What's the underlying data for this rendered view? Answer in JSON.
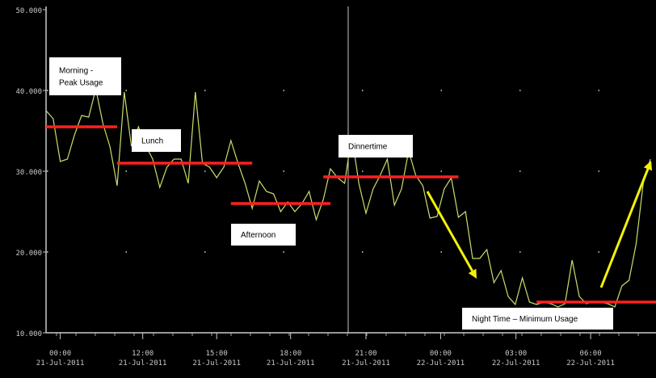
{
  "chart_data": {
    "type": "line",
    "title": "",
    "xlabel": "",
    "ylabel": "",
    "ylim": [
      10,
      50
    ],
    "y_ticks": [
      "10.000",
      "20.000",
      "30.000",
      "40.000",
      "50.000"
    ],
    "x_ticks": [
      {
        "time": "00:00",
        "date": "21-Jul-2011"
      },
      {
        "time": "12:00",
        "date": "21-Jul-2011"
      },
      {
        "time": "15:00",
        "date": "21-Jul-2011"
      },
      {
        "time": "18:00",
        "date": "21-Jul-2011"
      },
      {
        "time": "21:00",
        "date": "21-Jul-2011"
      },
      {
        "time": "00:00",
        "date": "22-Jul-2011"
      },
      {
        "time": "03:00",
        "date": "22-Jul-2011"
      },
      {
        "time": "06:00",
        "date": "22-Jul-2011"
      }
    ],
    "grid": true,
    "colors": {
      "background": "#000000",
      "line": "#c8e06a",
      "average": "#ff2020",
      "arrow": "#f2f20a",
      "axis": "#c9c9c9"
    },
    "series": [
      {
        "values": [
          37.5,
          36.5,
          31.2,
          31.5,
          34.5,
          36.9,
          36.7,
          40.2,
          35.9,
          33,
          28.2,
          39.8,
          33.1,
          35.5,
          33.2,
          31.5,
          28,
          30.5,
          31.5,
          31.5,
          28.5,
          39.8,
          31,
          30.5,
          29.2,
          30.5,
          33.8,
          31,
          28.5,
          25.4,
          28.8,
          27.5,
          27.2,
          25,
          26.2,
          25,
          26,
          27.5,
          24,
          26.5,
          30.3,
          29.2,
          28.5,
          34.5,
          28.5,
          24.8,
          27.8,
          29.5,
          31.5,
          25.8,
          27.8,
          32.5,
          29.5,
          28.2,
          24.2,
          24.4,
          27.8,
          29.2,
          24.3,
          25,
          19.2,
          19.2,
          20.3,
          16.2,
          17.7,
          14.5,
          13.5,
          16.8,
          13.8,
          13.5,
          13.8,
          13.6,
          13.2,
          13.6,
          19,
          14.5,
          13.6,
          13.9,
          13.8,
          13.6,
          13.2,
          15.8,
          16.5,
          21,
          28.5,
          31.5
        ]
      }
    ],
    "annotations": [
      {
        "label": "Morning -\nPeak Usage",
        "level": 35.5
      },
      {
        "label": "Lunch",
        "level": 31
      },
      {
        "label": "Afternoon",
        "level": 26
      },
      {
        "label": "Dinnertime",
        "level": 29.3
      },
      {
        "label": "Night Time – Minimum Usage",
        "level": 13.8
      }
    ]
  }
}
